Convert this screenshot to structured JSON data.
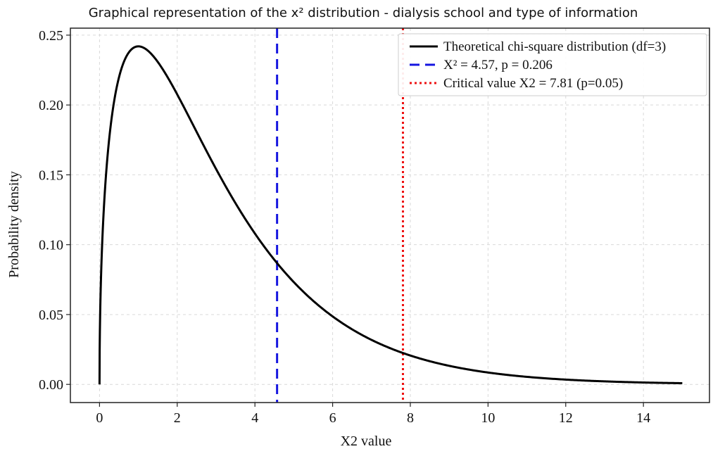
{
  "chart_data": {
    "type": "line",
    "title": "Graphical representation of the x² distribution - dialysis school and type of information",
    "xlabel": "X2 value",
    "ylabel": "Probability density",
    "xlim": [
      -0.75,
      15.7
    ],
    "ylim": [
      -0.013,
      0.255
    ],
    "xticks": [
      0,
      2,
      4,
      6,
      8,
      10,
      12,
      14
    ],
    "yticks": [
      0.0,
      0.05,
      0.1,
      0.15,
      0.2,
      0.25
    ],
    "xtick_labels": [
      "0",
      "2",
      "4",
      "6",
      "8",
      "10",
      "12",
      "14"
    ],
    "ytick_labels": [
      "0.00",
      "0.05",
      "0.10",
      "0.15",
      "0.20",
      "0.25"
    ],
    "grid": true,
    "legend_position": "top-right",
    "series": [
      {
        "name": "Theoretical chi-square distribution (df=3)",
        "kind": "curve",
        "df": 3,
        "x_range": [
          0,
          15
        ],
        "color": "#000000",
        "style": "solid"
      }
    ],
    "vlines": [
      {
        "name": "X² = 4.57, p = 0.206",
        "x": 4.57,
        "color": "#1515e0",
        "style": "dashed"
      },
      {
        "name": "Critical value X2 = 7.81 (p=0.05)",
        "x": 7.81,
        "color": "#ee1111",
        "style": "dotted"
      }
    ]
  }
}
